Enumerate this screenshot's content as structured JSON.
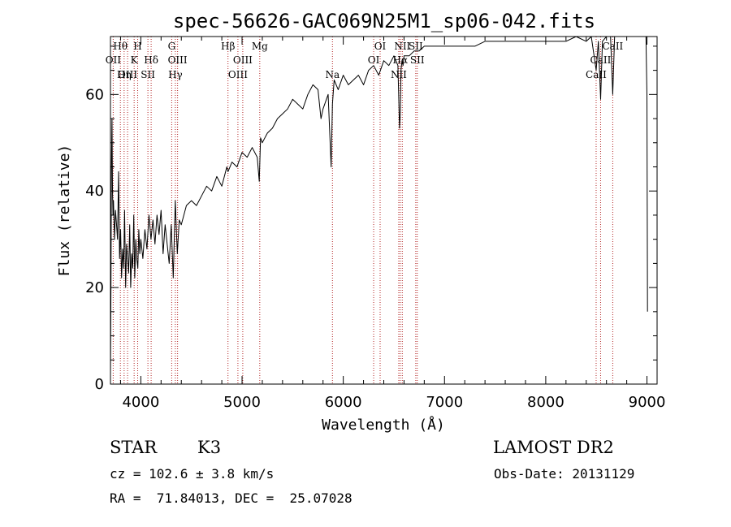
{
  "chart_data": {
    "type": "line",
    "title": "spec-56626-GAC069N25M1_sp06-042.fits",
    "xlabel": "Wavelength (Å)",
    "ylabel": "Flux (relative)",
    "xlim": [
      3700,
      9100
    ],
    "ylim": [
      0,
      72
    ],
    "xticks": [
      4000,
      5000,
      6000,
      7000,
      8000,
      9000
    ],
    "yticks": [
      0,
      20,
      40,
      60
    ],
    "series": [
      {
        "name": "flux",
        "x": [
          3700,
          3705,
          3710,
          3715,
          3720,
          3725,
          3730,
          3740,
          3750,
          3760,
          3770,
          3780,
          3790,
          3800,
          3810,
          3820,
          3830,
          3840,
          3850,
          3860,
          3870,
          3880,
          3890,
          3900,
          3910,
          3920,
          3930,
          3940,
          3950,
          3960,
          3970,
          3980,
          3990,
          4000,
          4020,
          4040,
          4060,
          4080,
          4100,
          4120,
          4140,
          4160,
          4180,
          4200,
          4220,
          4240,
          4260,
          4280,
          4300,
          4320,
          4340,
          4360,
          4380,
          4400,
          4450,
          4500,
          4550,
          4600,
          4650,
          4700,
          4750,
          4800,
          4850,
          4861,
          4900,
          4950,
          5000,
          5050,
          5100,
          5150,
          5170,
          5183,
          5200,
          5250,
          5300,
          5350,
          5400,
          5450,
          5500,
          5550,
          5600,
          5650,
          5700,
          5750,
          5780,
          5800,
          5850,
          5880,
          5893,
          5910,
          5950,
          6000,
          6050,
          6100,
          6150,
          6200,
          6250,
          6300,
          6350,
          6400,
          6450,
          6500,
          6540,
          6556,
          6563,
          6570,
          6580,
          6590,
          6600,
          6650,
          6700,
          6750,
          6800,
          6900,
          7000,
          7100,
          7200,
          7300,
          7400,
          7500,
          7600,
          7700,
          7800,
          7900,
          8000,
          8100,
          8200,
          8300,
          8400,
          8450,
          8498,
          8520,
          8542,
          8560,
          8600,
          8640,
          8662,
          8680,
          8700,
          8750,
          8800,
          8850,
          8900,
          8950,
          8990,
          9000,
          9005
        ],
        "y": [
          2,
          20,
          45,
          55,
          40,
          35,
          38,
          30,
          36,
          33,
          30,
          44,
          26,
          32,
          22,
          28,
          24,
          36,
          20,
          29,
          26,
          23,
          33,
          20,
          27,
          24,
          35,
          22,
          30,
          26,
          24,
          32,
          27,
          30,
          26,
          32,
          28,
          35,
          30,
          34,
          29,
          35,
          31,
          36,
          27,
          33,
          29,
          25,
          33,
          22,
          38,
          27,
          34,
          33,
          37,
          38,
          37,
          39,
          41,
          40,
          43,
          41,
          45,
          44,
          46,
          45,
          48,
          47,
          49,
          47,
          42,
          51,
          50,
          52,
          53,
          55,
          56,
          57,
          59,
          58,
          57,
          60,
          62,
          61,
          55,
          57,
          60,
          45,
          58,
          63,
          61,
          64,
          62,
          63,
          64,
          62,
          65,
          66,
          64,
          67,
          66,
          68,
          66,
          53,
          56,
          65,
          67,
          66,
          68,
          68,
          69,
          69,
          70,
          70,
          70,
          70,
          70,
          70,
          71,
          71,
          71,
          71,
          71,
          71,
          71,
          71,
          71,
          72,
          71,
          72,
          65,
          71,
          59,
          71,
          72,
          72,
          60,
          72,
          72,
          72,
          72,
          72,
          72,
          72,
          72,
          60,
          15
        ]
      }
    ],
    "spectral_lines": [
      {
        "label": "Hθ",
        "x": 3798,
        "row": 0
      },
      {
        "label": "OII",
        "x": 3727,
        "row": 1
      },
      {
        "label": "OIII",
        "x": 3869,
        "row": 2
      },
      {
        "label": "Hη",
        "x": 3835,
        "row": 2
      },
      {
        "label": "H",
        "x": 3969,
        "row": 0
      },
      {
        "label": "K",
        "x": 3934,
        "row": 1
      },
      {
        "label": "Hδ",
        "x": 4102,
        "row": 1
      },
      {
        "label": "SII",
        "x": 4070,
        "row": 2
      },
      {
        "label": "G",
        "x": 4305,
        "row": 0
      },
      {
        "label": "OIII",
        "x": 4363,
        "row": 1
      },
      {
        "label": "Hγ",
        "x": 4341,
        "row": 2
      },
      {
        "label": "Hβ",
        "x": 4861,
        "row": 0
      },
      {
        "label": "OIII",
        "x": 5007,
        "row": 1
      },
      {
        "label": "OIII",
        "x": 4959,
        "row": 2
      },
      {
        "label": "Mg",
        "x": 5175,
        "row": 0
      },
      {
        "label": "Na",
        "x": 5893,
        "row": 2
      },
      {
        "label": "OI",
        "x": 6364,
        "row": 0
      },
      {
        "label": "OI",
        "x": 6300,
        "row": 1
      },
      {
        "label": "NII",
        "x": 6583,
        "row": 0
      },
      {
        "label": "SII",
        "x": 6716,
        "row": 0
      },
      {
        "label": "Hα",
        "x": 6563,
        "row": 1
      },
      {
        "label": "SII",
        "x": 6731,
        "row": 1
      },
      {
        "label": "NII",
        "x": 6548,
        "row": 2
      },
      {
        "label": "CaII",
        "x": 8662,
        "row": 0
      },
      {
        "label": "CaII",
        "x": 8542,
        "row": 1
      },
      {
        "label": "CaII",
        "x": 8498,
        "row": 2
      }
    ]
  },
  "info": {
    "object_class": "STAR",
    "subclass": "K3",
    "survey": "LAMOST DR2",
    "velocity": "cz = 102.6 ± 3.8 km/s",
    "obs_date": "Obs-Date: 20131129",
    "coords": "RA =  71.84013, DEC =  25.07028"
  },
  "colors": {
    "line_marker": "#b22222",
    "spectrum": "#000000"
  }
}
